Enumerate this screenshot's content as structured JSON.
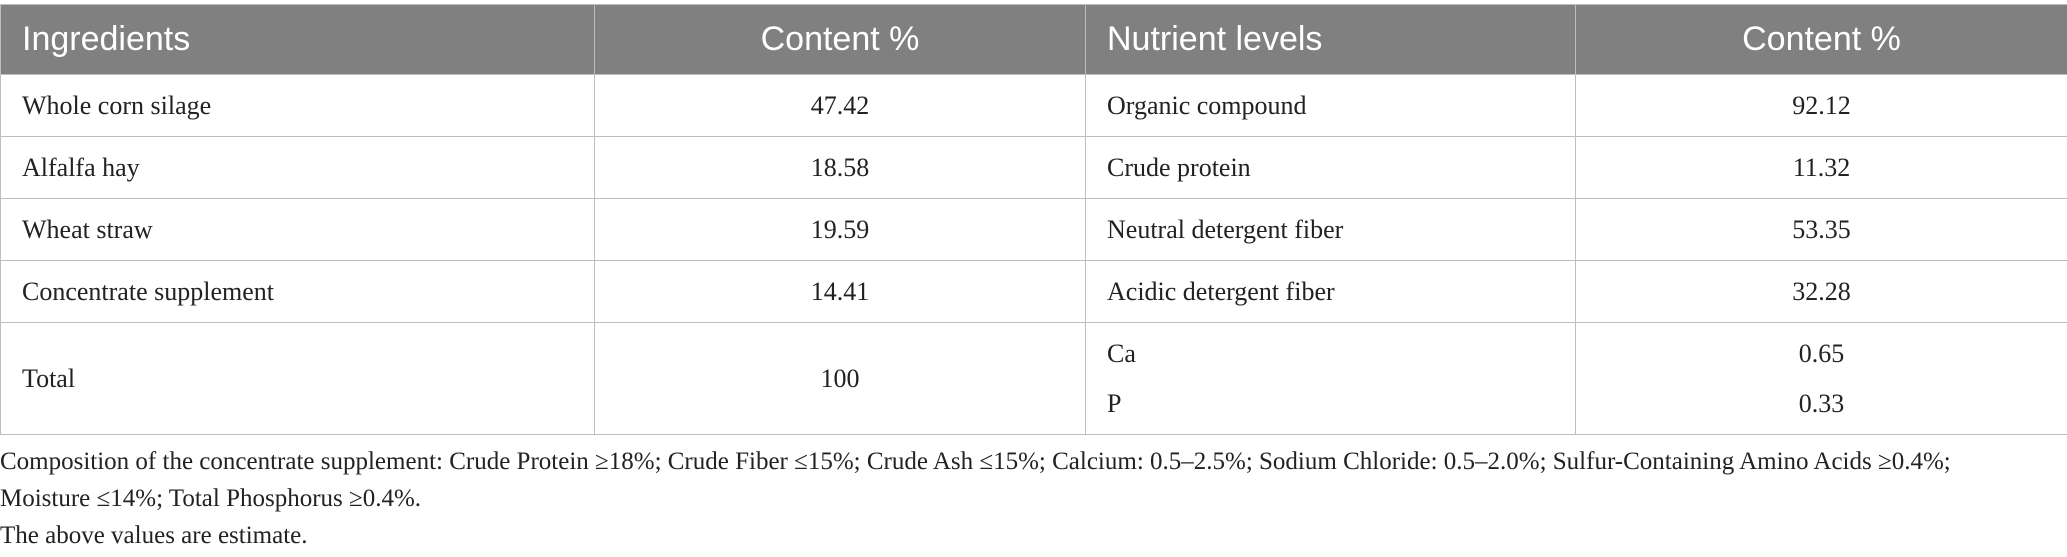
{
  "table": {
    "columns": [
      "Ingredients",
      "Content %",
      "Nutrient levels",
      "Content %"
    ],
    "rows": [
      [
        "Whole corn silage",
        "47.42",
        "Organic compound",
        "92.12"
      ],
      [
        "Alfalfa hay",
        "18.58",
        "Crude protein",
        "11.32"
      ],
      [
        "Wheat straw",
        "19.59",
        "Neutral detergent fiber",
        "53.35"
      ],
      [
        "Concentrate supplement",
        "14.41",
        "Acidic detergent fiber",
        "32.28"
      ],
      [
        "Total",
        "100",
        [
          "Ca",
          "P"
        ],
        [
          "0.65",
          "0.33"
        ]
      ]
    ]
  },
  "notes": [
    "Composition of the concentrate supplement: Crude Protein ≥18%; Crude Fiber ≤15%; Crude Ash ≤15%; Calcium: 0.5–2.5%; Sodium Chloride: 0.5–2.0%; Sulfur-Containing Amino Acids ≥0.4%; Moisture ≤14%; Total Phosphorus ≥0.4%.",
    "The above values are estimate."
  ]
}
